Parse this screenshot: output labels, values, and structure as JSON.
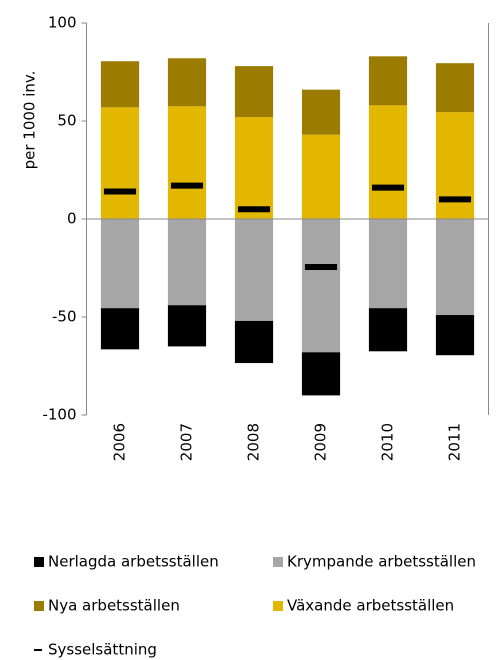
{
  "chart_data": {
    "type": "bar",
    "stacked": true,
    "y_label": "per 1000 inv.",
    "categories": [
      "2006",
      "2007",
      "2008",
      "2009",
      "2010",
      "2011"
    ],
    "series": [
      {
        "name": "Nerlagda arbetsställen",
        "color": "#000000",
        "values": [
          -21,
          -21,
          -21.5,
          -22,
          -22,
          -20.5
        ]
      },
      {
        "name": "Krympande arbetsställen",
        "color": "#a6a6a6",
        "values": [
          -45.5,
          -44,
          -52,
          -68,
          -45.5,
          -49
        ]
      },
      {
        "name": "Nya arbetsställen",
        "color": "#9c7c00",
        "values": [
          23.5,
          24.5,
          26,
          23,
          25,
          25
        ]
      },
      {
        "name": "Växande arbetsställen",
        "color": "#e3b600",
        "values": [
          57,
          57.5,
          52,
          43,
          58,
          54.5
        ]
      },
      {
        "name": "Sysselsättning",
        "color": "#000000",
        "type": "dash",
        "values": [
          14,
          17,
          5,
          -24.5,
          16,
          10
        ]
      }
    ],
    "ylim": [
      -100,
      100
    ],
    "yticks": [
      -100,
      -50,
      0,
      50,
      100
    ]
  }
}
